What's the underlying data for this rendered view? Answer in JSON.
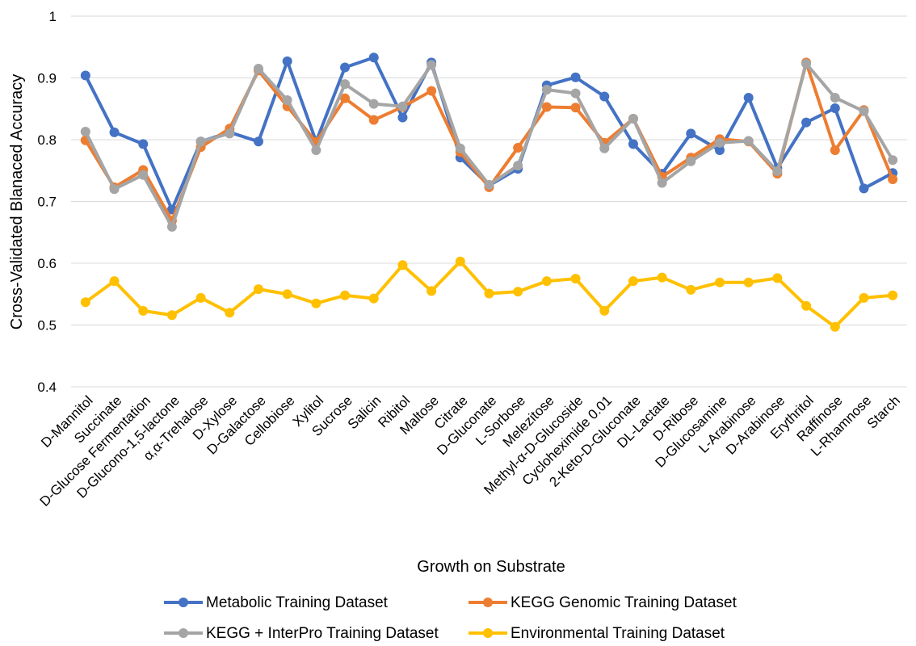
{
  "chart_data": {
    "type": "line",
    "xlabel": "Growth on Substrate",
    "ylabel": "Cross-Validated Blanaced Accuracy",
    "ylim": [
      0.4,
      1.0
    ],
    "yticks": [
      "0.4",
      "0.5",
      "0.6",
      "0.7",
      "0.8",
      "0.9",
      "1"
    ],
    "grid": true,
    "legend_position": "bottom",
    "categories": [
      "D-Mannitol",
      "Succinate",
      "D-Glucose Fermentation",
      "D-Glucono-1,5-lactone",
      "α,α-Trehalose",
      "D-Xylose",
      "D-Galactose",
      "Cellobiose",
      "Xylitol",
      "Sucrose",
      "Salicin",
      "Ribitol",
      "Maltose",
      "Citrate",
      "D-Gluconate",
      "L-Sorbose",
      "Melezitose",
      "Methyl-α-D-Glucoside",
      "Cycloheximide 0.01",
      "2-Keto-D-Gluconate",
      "DL-Lactate",
      "D-Ribose",
      "D-Glucosamine",
      "L-Arabinose",
      "D-Arabinose",
      "Erythritol",
      "Raffinose",
      "L-Rhamnose",
      "Starch"
    ],
    "series": [
      {
        "name": "Metabolic Training Dataset",
        "color": "#4472C4",
        "values": [
          0.904,
          0.812,
          0.793,
          0.687,
          0.797,
          0.812,
          0.797,
          0.927,
          0.797,
          0.917,
          0.933,
          0.836,
          0.925,
          0.771,
          0.726,
          0.753,
          0.888,
          0.901,
          0.87,
          0.793,
          0.745,
          0.81,
          0.783,
          0.868,
          0.754,
          0.828,
          0.851,
          0.721,
          0.746
        ]
      },
      {
        "name": "KEGG Genomic Training Dataset",
        "color": "#ED7D31",
        "values": [
          0.799,
          0.723,
          0.751,
          0.669,
          0.788,
          0.818,
          0.912,
          0.854,
          0.796,
          0.867,
          0.832,
          0.853,
          0.879,
          0.78,
          0.723,
          0.787,
          0.853,
          0.852,
          0.795,
          0.834,
          0.74,
          0.771,
          0.801,
          0.797,
          0.745,
          0.925,
          0.783,
          0.848,
          0.736
        ]
      },
      {
        "name": "KEGG + InterPro Training Dataset",
        "color": "#A5A5A5",
        "values": [
          0.813,
          0.72,
          0.743,
          0.659,
          0.797,
          0.81,
          0.915,
          0.864,
          0.783,
          0.89,
          0.858,
          0.854,
          0.921,
          0.786,
          0.727,
          0.758,
          0.881,
          0.875,
          0.786,
          0.834,
          0.73,
          0.765,
          0.795,
          0.798,
          0.749,
          0.923,
          0.868,
          0.846,
          0.767
        ]
      },
      {
        "name": "Environmental Training Dataset",
        "color": "#FFC000",
        "values": [
          0.537,
          0.571,
          0.523,
          0.516,
          0.544,
          0.52,
          0.558,
          0.55,
          0.535,
          0.548,
          0.543,
          0.597,
          0.555,
          0.603,
          0.551,
          0.554,
          0.571,
          0.575,
          0.523,
          0.571,
          0.577,
          0.557,
          0.569,
          0.569,
          0.576,
          0.531,
          0.497,
          0.544,
          0.548
        ]
      }
    ]
  }
}
